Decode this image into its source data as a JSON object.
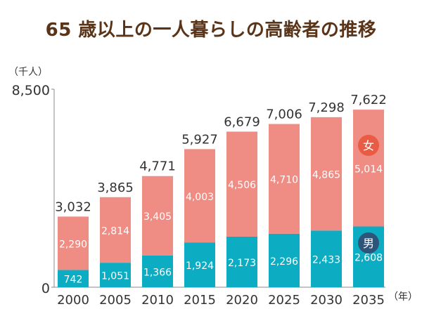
{
  "title": "65 歳以上の一人暮らしの高齢者の推移",
  "chart_data": {
    "type": "bar",
    "stacked": true,
    "title": "65 歳以上の一人暮らしの高齢者の推移",
    "y_unit": "（千人）",
    "x_unit": "（年）",
    "ylim": [
      0,
      8500
    ],
    "y_ticks": [
      "8,500",
      "0"
    ],
    "y_tick_values": [
      8500,
      0
    ],
    "grid": false,
    "legend": "inside-last-bar",
    "categories": [
      "2000",
      "2005",
      "2010",
      "2015",
      "2020",
      "2025",
      "2030",
      "2035"
    ],
    "series": [
      {
        "name": "男",
        "color": "#0cacc2",
        "label_color": "#ffffff",
        "badge_color": "#2f5479",
        "values": [
          742,
          1051,
          1366,
          1924,
          2173,
          2296,
          2433,
          2608
        ],
        "labels": [
          "742",
          "1,051",
          "1,366",
          "1,924",
          "2,173",
          "2,296",
          "2,433",
          "2,608"
        ]
      },
      {
        "name": "女",
        "color": "#ef8c84",
        "label_color": "#ffffff",
        "badge_color": "#e85c45",
        "values": [
          2290,
          2814,
          3405,
          4003,
          4506,
          4710,
          4865,
          5014
        ],
        "labels": [
          "2,290",
          "2,814",
          "3,405",
          "4,003",
          "4,506",
          "4,710",
          "4,865",
          "5,014"
        ]
      }
    ],
    "totals": [
      3032,
      3865,
      4771,
      5927,
      6679,
      7006,
      7298,
      7622
    ],
    "total_labels": [
      "3,032",
      "3,865",
      "4,771",
      "5,927",
      "6,679",
      "7,006",
      "7,298",
      "7,622"
    ]
  }
}
